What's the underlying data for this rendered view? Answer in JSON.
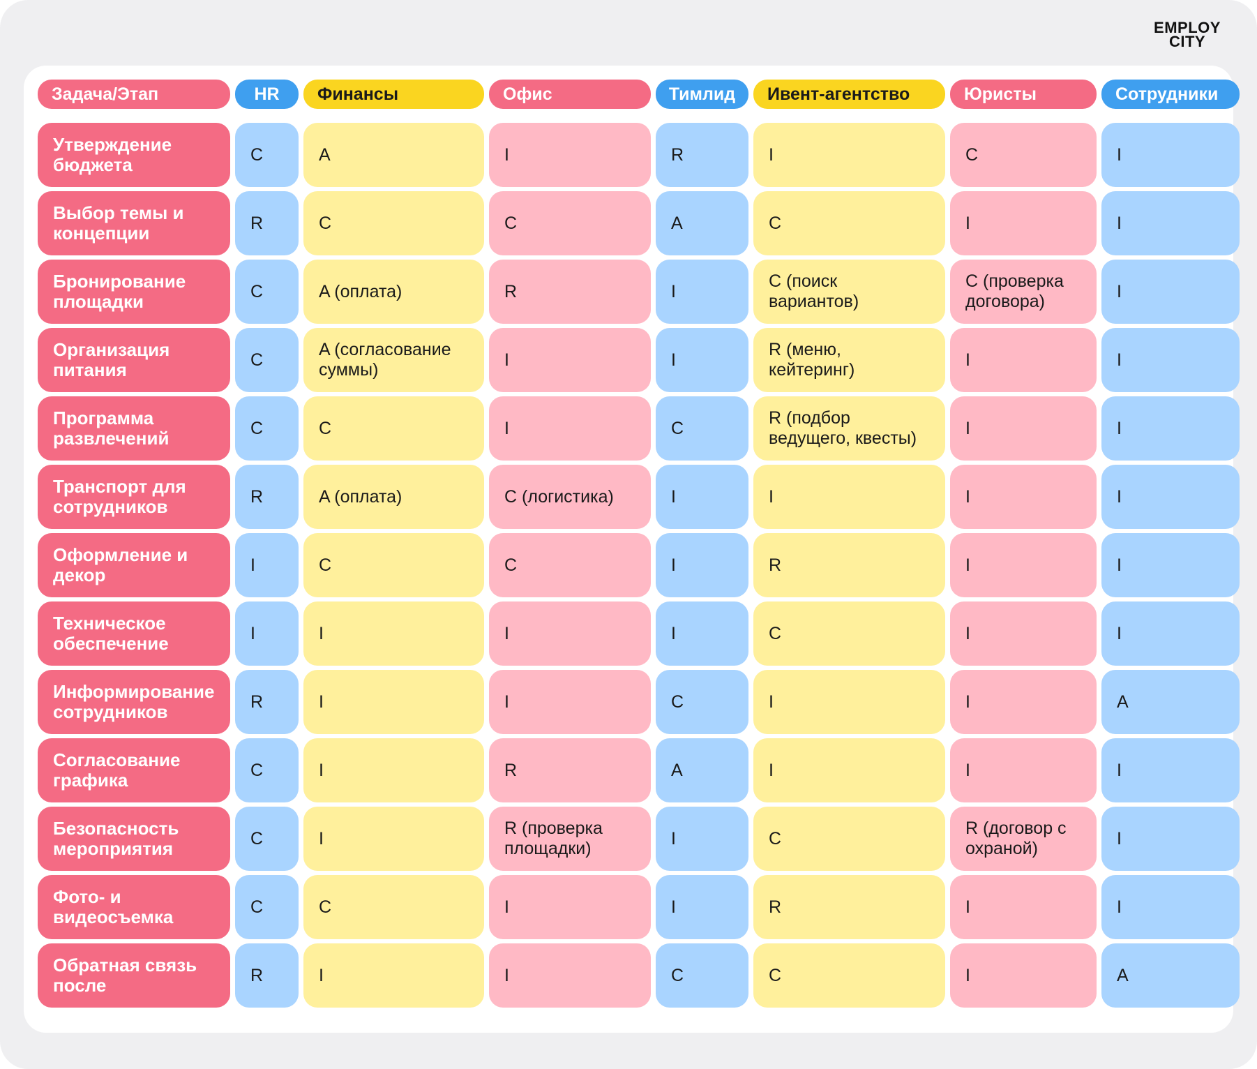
{
  "brand": {
    "logo_line1": "EMPLOY",
    "logo_line2": "CITY"
  },
  "colors": {
    "task": "#f46b84",
    "header_blue": "#3f9fef",
    "header_yellow": "#fad520",
    "cell_blue": "#a9d4ff",
    "cell_yellow": "#fff09c",
    "cell_pink": "#ffb9c5"
  },
  "table": {
    "headers": [
      "Задача/Этап",
      "HR",
      "Финансы",
      "Офис",
      "Тимлид",
      "Ивент-агентство",
      "Юристы",
      "Сотрудники"
    ],
    "rows": [
      {
        "task": "Утверждение бюджета",
        "values": [
          "C",
          "A",
          "I",
          "R",
          "I",
          "C",
          "I"
        ]
      },
      {
        "task": "Выбор темы и концепции",
        "values": [
          "R",
          "C",
          "C",
          "A",
          "C",
          "I",
          "I"
        ]
      },
      {
        "task": "Бронирование площадки",
        "values": [
          "C",
          "A (оплата)",
          "R",
          "I",
          "C (поиск вариантов)",
          "C (проверка договора)",
          "I"
        ]
      },
      {
        "task": "Организация питания",
        "values": [
          "C",
          "A (согласование суммы)",
          "I",
          "I",
          "R (меню, кейтеринг)",
          "I",
          "I"
        ]
      },
      {
        "task": "Программа развлечений",
        "values": [
          "C",
          "C",
          "I",
          "C",
          "R (подбор ведущего, квесты)",
          "I",
          "I"
        ]
      },
      {
        "task": "Транспорт для сотрудников",
        "values": [
          "R",
          "A (оплата)",
          "C (логистика)",
          "I",
          "I",
          "I",
          "I"
        ]
      },
      {
        "task": "Оформление и декор",
        "values": [
          "I",
          "C",
          "C",
          "I",
          "R",
          "I",
          "I"
        ]
      },
      {
        "task": "Техническое обеспечение",
        "values": [
          "I",
          "I",
          "I",
          "I",
          "C",
          "I",
          "I"
        ]
      },
      {
        "task": "Информирование сотрудников",
        "values": [
          "R",
          "I",
          "I",
          "C",
          "I",
          "I",
          "A"
        ]
      },
      {
        "task": "Согласование графика",
        "values": [
          "C",
          "I",
          "R",
          "A",
          "I",
          "I",
          "I"
        ]
      },
      {
        "task": "Безопасность мероприятия",
        "values": [
          "C",
          "I",
          "R (проверка площадки)",
          "I",
          "C",
          "R (договор с охраной)",
          "I"
        ]
      },
      {
        "task": "Фото- и видеосъемка",
        "values": [
          "C",
          "C",
          "I",
          "I",
          "R",
          "I",
          "I"
        ]
      },
      {
        "task": "Обратная связь после",
        "values": [
          "R",
          "I",
          "I",
          "C",
          "C",
          "I",
          "A"
        ]
      }
    ]
  }
}
